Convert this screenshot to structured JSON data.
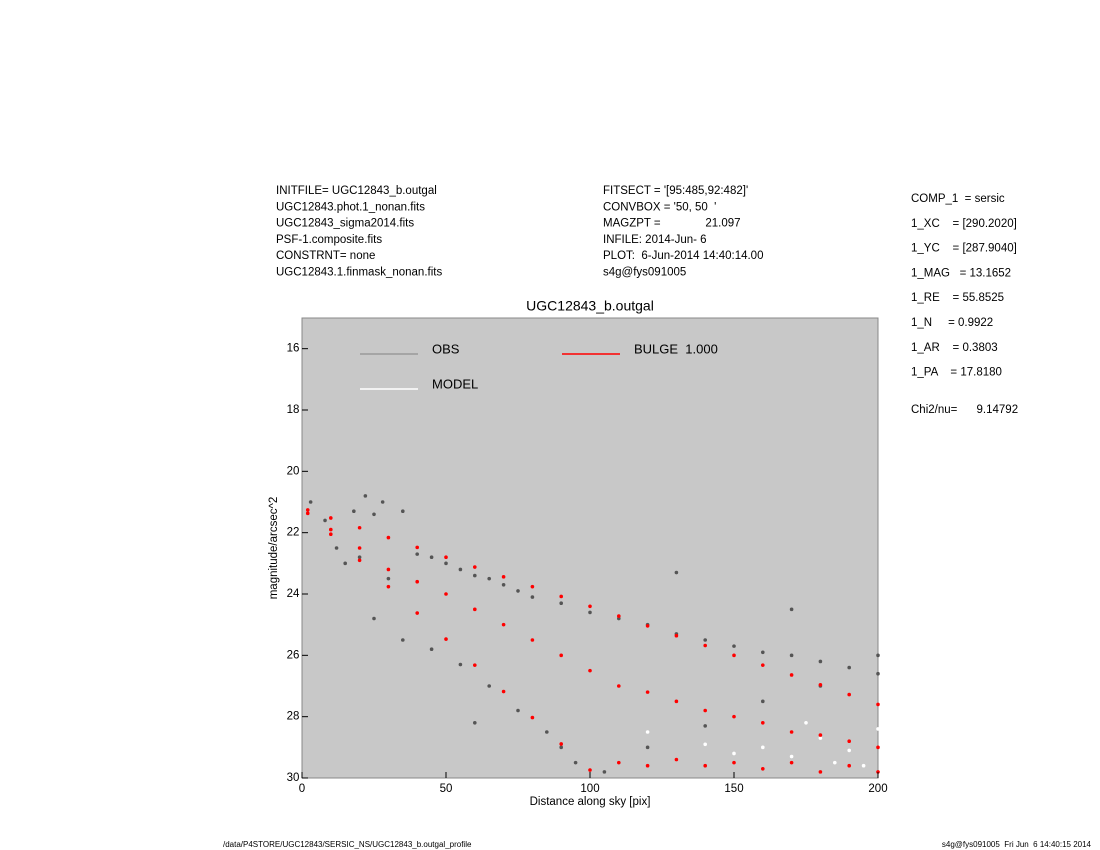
{
  "info_left": [
    "INITFILE= UGC12843_b.outgal",
    "UGC12843.phot.1_nonan.fits",
    "UGC12843_sigma2014.fits",
    "PSF-1.composite.fits",
    "CONSTRNT= none",
    "UGC12843.1.finmask_nonan.fits"
  ],
  "info_middle": [
    "FITSECT = '[95:485,92:482]'",
    "CONVBOX = '50, 50  '",
    "MAGZPT =              21.097",
    "INFILE: 2014-Jun- 6",
    "PLOT:  6-Jun-2014 14:40:14.00",
    "s4g@fys091005"
  ],
  "info_right": [
    "COMP_1  = sersic",
    "1_XC    = [290.2020]",
    "1_YC    = [287.9040]",
    "1_MAG   = 13.1652",
    "1_RE    = 55.8525",
    "1_N     = 0.9922",
    "1_AR    = 0.3803",
    "1_PA    = 17.8180"
  ],
  "chi2": "Chi2/nu=      9.14792",
  "footer_left": "/data/P4STORE/UGC12843/SERSIC_NS/UGC12843_b.outgal_profile",
  "footer_right": "s4g@fys091005  Fri Jun  6 14:40:15 2014",
  "chart_data": {
    "type": "scatter",
    "title": "UGC12843_b.outgal",
    "x_label": "Distance along sky [pix]",
    "y_label": "magnitude/arcsec^2",
    "xlim": [
      0,
      200
    ],
    "ylim": [
      30,
      15
    ],
    "xticks": [
      0,
      50,
      100,
      150,
      200
    ],
    "yticks": [
      16,
      18,
      20,
      22,
      24,
      26,
      28,
      30
    ],
    "background": "#c8c8c8",
    "series": [
      {
        "name": "OBS",
        "color": "#555555",
        "x": [
          3,
          8,
          12,
          18,
          20,
          22,
          25,
          28,
          30,
          35,
          40,
          45,
          50,
          55,
          60,
          65,
          70,
          75,
          80,
          90,
          100,
          110,
          120,
          130,
          140,
          150,
          160,
          170,
          180,
          190,
          200,
          25,
          35,
          45,
          55,
          65,
          75,
          85,
          95,
          105,
          120,
          140,
          160,
          180,
          200,
          15,
          60,
          90,
          130,
          170
        ],
        "values": [
          21.0,
          21.6,
          22.5,
          21.3,
          22.8,
          20.8,
          21.4,
          21.0,
          23.5,
          21.3,
          22.7,
          22.8,
          23.0,
          23.2,
          23.4,
          23.5,
          23.7,
          23.9,
          24.1,
          24.3,
          24.6,
          24.8,
          25.0,
          25.3,
          25.5,
          25.7,
          25.9,
          26.0,
          26.2,
          26.4,
          26.6,
          24.8,
          25.5,
          25.8,
          26.3,
          27.0,
          27.8,
          28.5,
          29.5,
          29.8,
          29.0,
          28.3,
          27.5,
          27.0,
          26.0,
          23.0,
          28.2,
          29.0,
          23.3,
          24.5
        ]
      },
      {
        "name": "MODEL",
        "color": "#ffffff",
        "x": [
          120,
          140,
          150,
          160,
          170,
          180,
          190,
          200,
          130,
          175,
          195,
          185
        ],
        "values": [
          28.5,
          28.9,
          29.2,
          29.0,
          29.3,
          28.7,
          29.1,
          28.4,
          29.4,
          28.2,
          29.6,
          29.5
        ]
      },
      {
        "name": "BULGE  1.000",
        "color": "#ff0000",
        "x": [
          2,
          2,
          10,
          10,
          10,
          20,
          20,
          20,
          30,
          30,
          30,
          40,
          40,
          40,
          50,
          50,
          50,
          60,
          60,
          60,
          70,
          70,
          70,
          80,
          80,
          80,
          90,
          90,
          90,
          100,
          100,
          100,
          110,
          110,
          110,
          120,
          120,
          120,
          130,
          130,
          130,
          140,
          140,
          140,
          150,
          150,
          150,
          160,
          160,
          160,
          170,
          170,
          170,
          180,
          180,
          180,
          190,
          190,
          190,
          200,
          200,
          200
        ],
        "values": [
          21.26,
          21.37,
          21.52,
          21.9,
          22.05,
          21.84,
          22.5,
          22.9,
          22.16,
          23.2,
          23.76,
          22.48,
          23.6,
          24.62,
          22.8,
          24.0,
          25.47,
          23.12,
          24.5,
          26.32,
          23.44,
          25.0,
          27.18,
          23.76,
          25.5,
          28.03,
          24.08,
          26.0,
          28.89,
          24.4,
          26.5,
          29.74,
          24.72,
          27.0,
          29.5,
          25.04,
          27.2,
          29.6,
          25.36,
          27.5,
          29.4,
          25.68,
          27.8,
          29.6,
          26.0,
          28.0,
          29.5,
          26.32,
          28.2,
          29.7,
          26.64,
          28.5,
          29.5,
          26.96,
          28.6,
          29.8,
          27.28,
          28.8,
          29.6,
          27.6,
          29.0,
          29.8
        ]
      }
    ]
  }
}
